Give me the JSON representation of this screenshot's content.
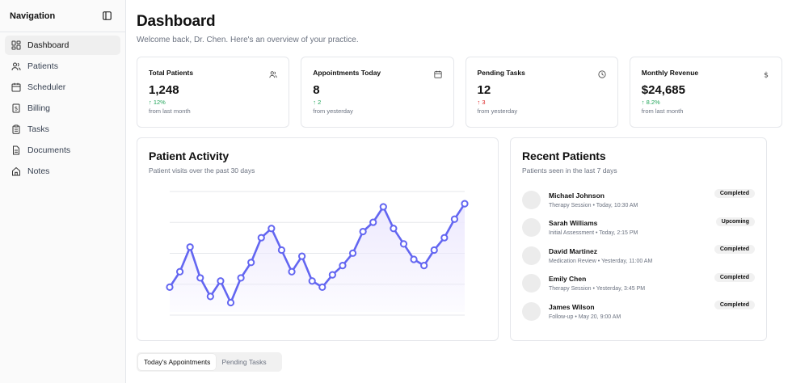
{
  "sidebar": {
    "title": "Navigation",
    "items": [
      {
        "label": "Dashboard",
        "icon": "dashboard-icon",
        "active": true
      },
      {
        "label": "Patients",
        "icon": "users-icon"
      },
      {
        "label": "Scheduler",
        "icon": "calendar-icon"
      },
      {
        "label": "Billing",
        "icon": "receipt-icon"
      },
      {
        "label": "Tasks",
        "icon": "clipboard-icon"
      },
      {
        "label": "Documents",
        "icon": "file-icon"
      },
      {
        "label": "Notes",
        "icon": "home-icon"
      }
    ]
  },
  "header": {
    "title": "Dashboard",
    "subtitle": "Welcome back, Dr. Chen. Here's an overview of your practice."
  },
  "stats": [
    {
      "label": "Total Patients",
      "value": "1,248",
      "delta": "↑ 12%",
      "direction": "up",
      "foot": "from last month",
      "icon": "users-icon"
    },
    {
      "label": "Appointments Today",
      "value": "8",
      "delta": "↑ 2",
      "direction": "up",
      "foot": "from yesterday",
      "icon": "calendar-icon"
    },
    {
      "label": "Pending Tasks",
      "value": "12",
      "delta": "↑ 3",
      "direction": "down",
      "foot": "from yesterday",
      "icon": "clock-icon"
    },
    {
      "label": "Monthly Revenue",
      "value": "$24,685",
      "delta": "↑ 8.2%",
      "direction": "up",
      "foot": "from last month",
      "icon": "dollar-icon"
    }
  ],
  "activity": {
    "title": "Patient Activity",
    "subtitle": "Patient visits over the past 30 days"
  },
  "chart_data": {
    "type": "area",
    "x": [
      1,
      2,
      3,
      4,
      5,
      6,
      7,
      8,
      9,
      10,
      11,
      12,
      13,
      14,
      15,
      16,
      17,
      18,
      19,
      20,
      21,
      22,
      23,
      24,
      25,
      26,
      27,
      28,
      29,
      30
    ],
    "values": [
      8,
      13,
      21,
      11,
      5,
      10,
      3,
      11,
      16,
      24,
      27,
      20,
      13,
      18,
      10,
      8,
      12,
      15,
      19,
      26,
      29,
      34,
      27,
      22,
      17,
      15,
      20,
      24,
      30,
      35
    ],
    "ylim": [
      0,
      40
    ],
    "grid": true,
    "color": "#6366f1",
    "fill": "#ede9fe"
  },
  "recent": {
    "title": "Recent Patients",
    "subtitle": "Patients seen in the last 7 days",
    "patients": [
      {
        "name": "Michael Johnson",
        "type": "Therapy Session",
        "time": "Today, 10:30 AM",
        "status": "Completed"
      },
      {
        "name": "Sarah Williams",
        "type": "Initial Assessment",
        "time": "Today, 2:15 PM",
        "status": "Upcoming"
      },
      {
        "name": "David Martinez",
        "type": "Medication Review",
        "time": "Yesterday, 11:00 AM",
        "status": "Completed"
      },
      {
        "name": "Emily Chen",
        "type": "Therapy Session",
        "time": "Yesterday, 3:45 PM",
        "status": "Completed"
      },
      {
        "name": "James Wilson",
        "type": "Follow-up",
        "time": "May 20, 9:00 AM",
        "status": "Completed"
      }
    ],
    "separator": "•"
  },
  "tabs": [
    {
      "label": "Today's Appointments",
      "active": true
    },
    {
      "label": "Pending Tasks",
      "active": false
    }
  ]
}
